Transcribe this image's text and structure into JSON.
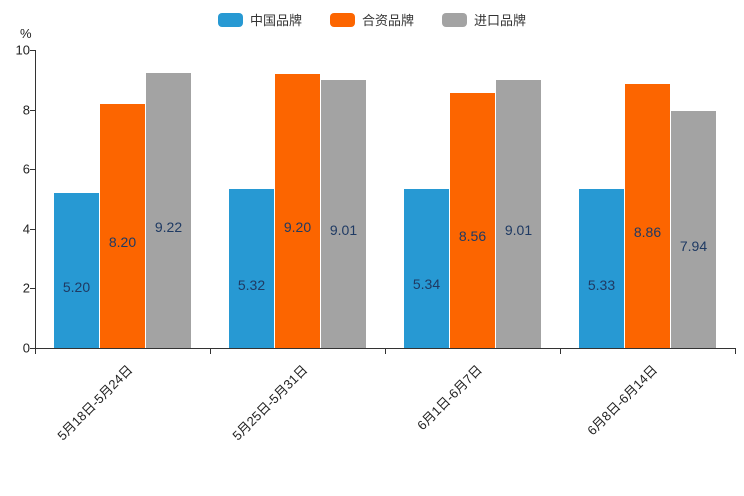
{
  "chart_data": {
    "type": "bar",
    "title": "",
    "ylabel": "%",
    "xlabel": "",
    "ylim": [
      0,
      10
    ],
    "yticks": [
      0,
      2,
      4,
      6,
      8,
      10
    ],
    "grid": false,
    "legend_position": "top-center",
    "categories": [
      "5月18日-5月24日",
      "5月25日-5月31日",
      "6月1日-6月7日",
      "6月8日-6月14日"
    ],
    "series": [
      {
        "name": "中国品牌",
        "color": "#2799d3",
        "values": [
          5.2,
          5.32,
          5.34,
          5.33
        ]
      },
      {
        "name": "合资品牌",
        "color": "#fc6500",
        "values": [
          8.2,
          9.2,
          8.56,
          8.86
        ]
      },
      {
        "name": "进口品牌",
        "color": "#a3a3a3",
        "values": [
          9.22,
          9.01,
          9.01,
          7.94
        ]
      }
    ],
    "value_label_color": "#1f3a63",
    "value_label_format": "0.00"
  }
}
